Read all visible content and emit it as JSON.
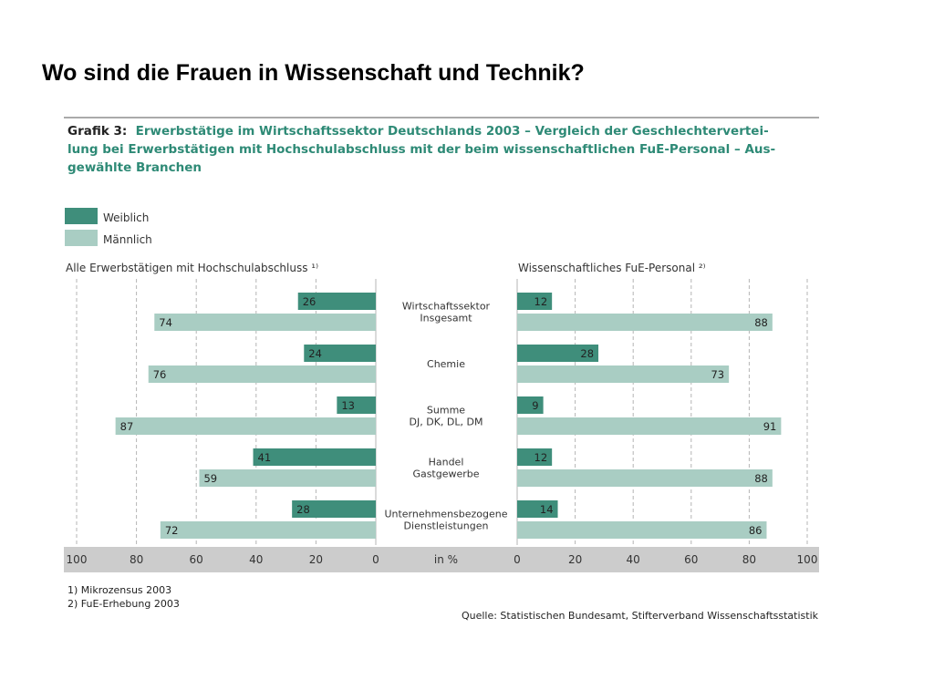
{
  "slide": {
    "title": "Wo sind die Frauen in Wissenschaft und Technik?"
  },
  "figure": {
    "heading_prefix": "Grafik 3:",
    "heading_lines": [
      "Erwerbstätige im Wirtschaftssektor Deutschlands 2003 – Vergleich der Geschlechtervertei-",
      "lung bei Erwerbstätigen mit Hochschulabschluss mit der beim wissenschaftlichen FuE-Personal – Aus-",
      "gewählte Branchen"
    ],
    "footnotes": [
      "1)  Mikrozensus 2003",
      "2)  FuE-Erhebung 2003"
    ],
    "source": "Quelle: Statistischen Bundesamt, Stifterverband Wissenschaftsstatistik"
  },
  "chart_data": {
    "type": "bar",
    "orientation": "horizontal-butterfly",
    "unit_label": "in %",
    "legend": {
      "placement": "top-left",
      "entries": [
        {
          "name": "Weiblich",
          "color": "#3f8e7b"
        },
        {
          "name": "Männlich",
          "color": "#a9cdc3"
        }
      ]
    },
    "categories": [
      [
        "Wirtschaftssektor",
        "Insgesamt"
      ],
      [
        "Chemie"
      ],
      [
        "Summe",
        "DJ, DK, DL, DM"
      ],
      [
        "Handel",
        "Gastgewerbe"
      ],
      [
        "Unternehmensbezogene",
        "Dienstleistungen"
      ]
    ],
    "left_panel": {
      "title": "Alle Erwerbstätigen mit Hochschulabschluss ¹⁾",
      "direction": "right-to-left",
      "xlim": [
        0,
        100
      ],
      "ticks": [
        100,
        80,
        60,
        40,
        20,
        0
      ],
      "series": [
        {
          "name": "Weiblich",
          "values": [
            26,
            24,
            13,
            41,
            28
          ]
        },
        {
          "name": "Männlich",
          "values": [
            74,
            76,
            87,
            59,
            72
          ]
        }
      ]
    },
    "right_panel": {
      "title": "Wissenschaftliches FuE-Personal ²⁾",
      "direction": "left-to-right",
      "xlim": [
        0,
        100
      ],
      "ticks": [
        0,
        20,
        40,
        60,
        80,
        100
      ],
      "series": [
        {
          "name": "Weiblich",
          "values": [
            12,
            28,
            9,
            12,
            14
          ]
        },
        {
          "name": "Männlich",
          "values": [
            88,
            73,
            91,
            88,
            86
          ]
        }
      ]
    },
    "grid": true
  }
}
